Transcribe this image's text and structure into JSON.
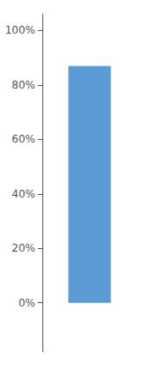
{
  "chart_data": {
    "type": "bar",
    "categories": [
      null
    ],
    "values": [
      0.87
    ],
    "color": "#5B9BD5",
    "ylim": [
      -0.18,
      1.06
    ],
    "yticks": [
      {
        "value": 0.0,
        "label": "0%"
      },
      {
        "value": 0.2,
        "label": "20%"
      },
      {
        "value": 0.4,
        "label": "40%"
      },
      {
        "value": 0.6,
        "label": "60%"
      },
      {
        "value": 0.8,
        "label": "80%"
      },
      {
        "value": 1.0,
        "label": "100%"
      }
    ],
    "grid": false,
    "tick_labels": "y"
  }
}
